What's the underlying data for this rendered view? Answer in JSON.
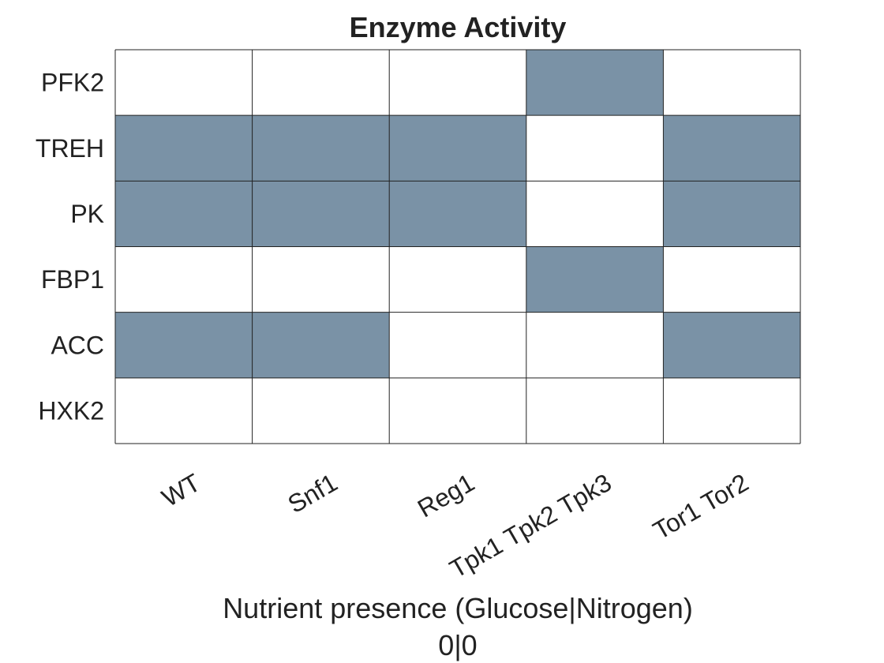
{
  "chart_data": {
    "type": "heatmap",
    "title": "Enzyme Activity",
    "xlabel": "Nutrient presence (Glucose|Nitrogen)",
    "xlabel_sub": "0|0",
    "ylabel": "",
    "x_categories": [
      "WT",
      "Snf1",
      "Reg1",
      "Tpk1 Tpk2 Tpk3",
      "Tor1 Tor2"
    ],
    "y_categories": [
      "PFK2",
      "TREH",
      "PK",
      "FBP1",
      "ACC",
      "HXK2"
    ],
    "values": [
      [
        0,
        0,
        0,
        1,
        0
      ],
      [
        1,
        1,
        1,
        0,
        1
      ],
      [
        1,
        1,
        1,
        0,
        1
      ],
      [
        0,
        0,
        0,
        1,
        0
      ],
      [
        1,
        1,
        0,
        0,
        1
      ],
      [
        0,
        0,
        0,
        0,
        0
      ]
    ],
    "colors": {
      "active": "#7a92a6",
      "inactive": "#ffffff",
      "grid": "#222222"
    },
    "x_tick_rotation": "-30",
    "grid": true,
    "legend": "none"
  }
}
